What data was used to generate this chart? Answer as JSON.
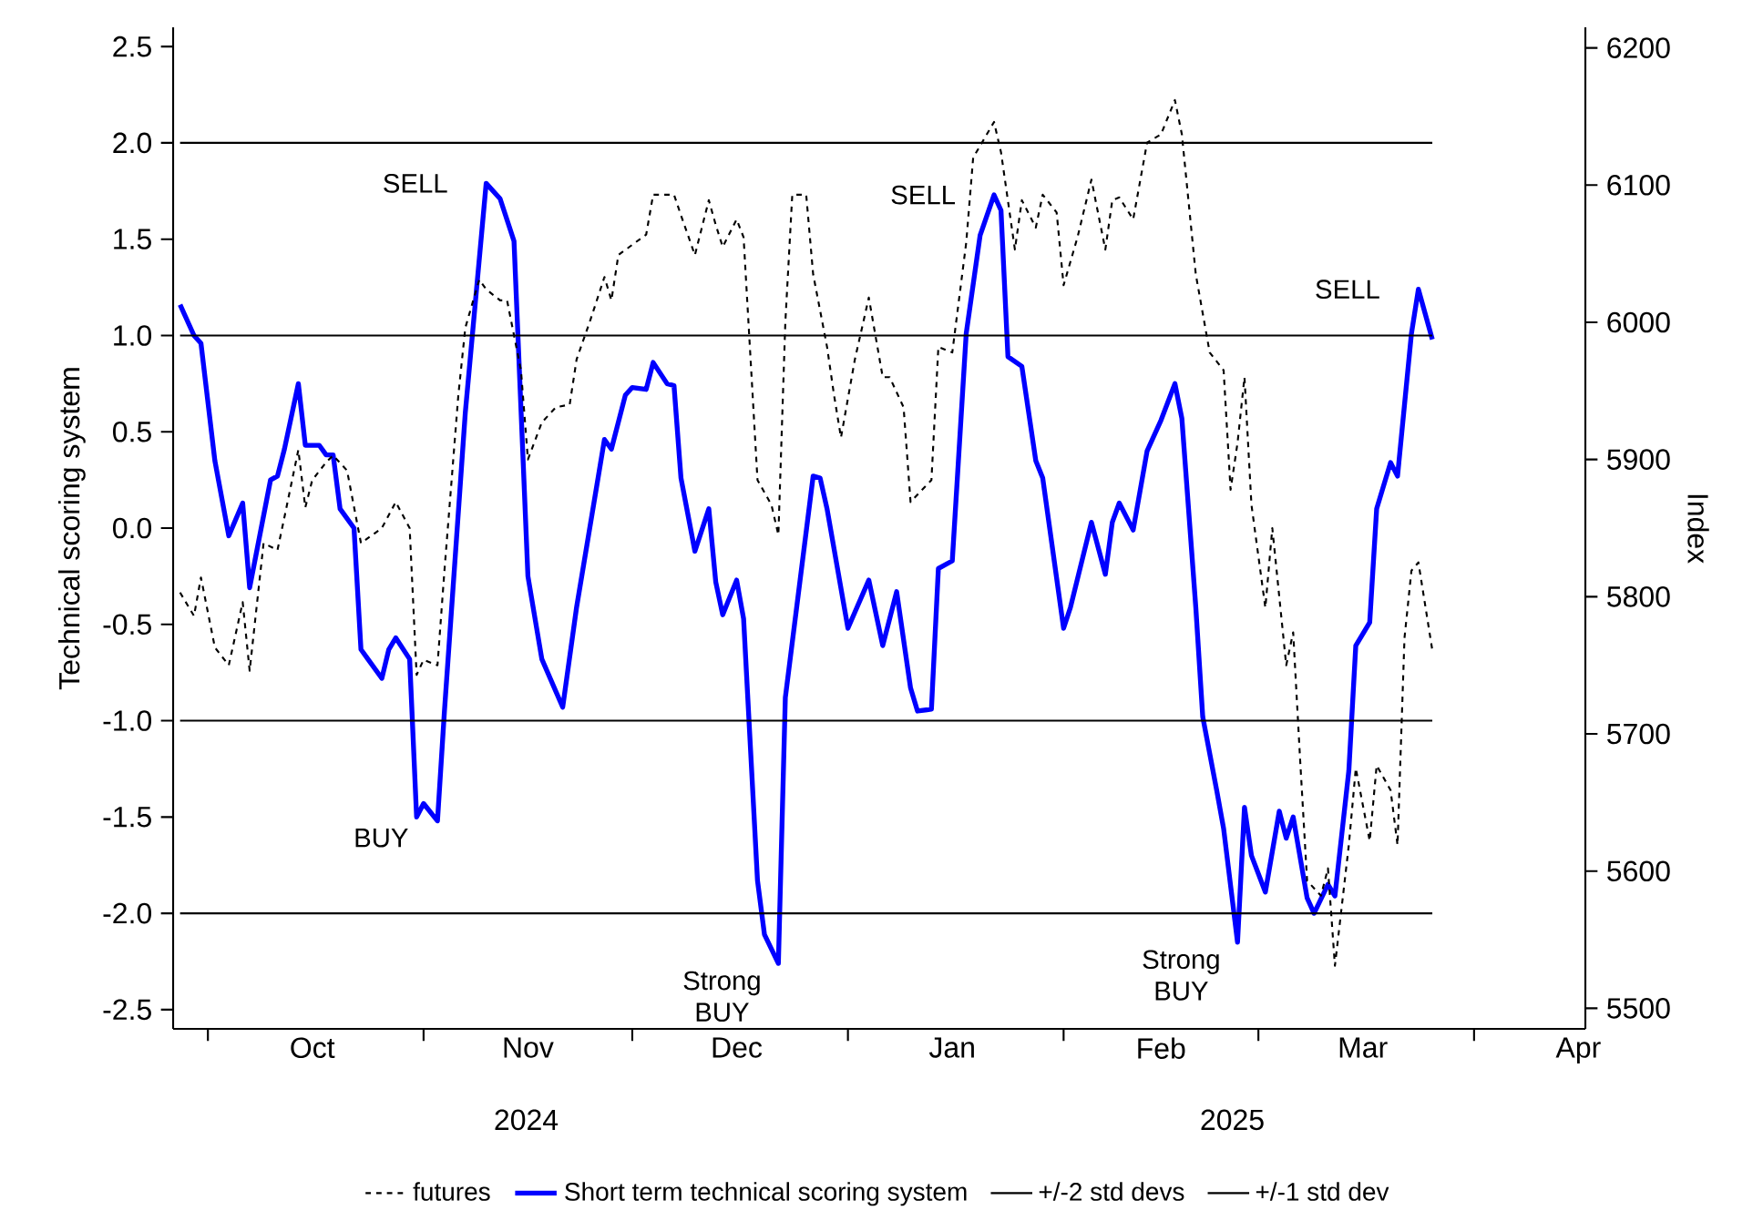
{
  "chart_data": {
    "type": "line",
    "ylabel": "Technical scoring system",
    "y2label": "Index",
    "xlim": [
      "2024-09-26",
      "2025-04-17"
    ],
    "ylim": [
      -2.6,
      2.6
    ],
    "y2lim": [
      5485,
      6215
    ],
    "xticks": [
      {
        "value": "2024-10-01",
        "label": null
      },
      {
        "value": "2024-11-01",
        "label": null
      },
      {
        "value": "2024-12-01",
        "label": null
      },
      {
        "value": "2025-01-01",
        "label": null
      },
      {
        "value": "2025-02-01",
        "label": null
      },
      {
        "value": "2025-03-01",
        "label": null
      },
      {
        "value": "2025-04-01",
        "label": null
      },
      {
        "value": "2024-10-16",
        "label": "Oct"
      },
      {
        "value": "2024-11-16",
        "label": "Nov"
      },
      {
        "value": "2024-12-16",
        "label": "Dec"
      },
      {
        "value": "2025-01-16",
        "label": "Jan"
      },
      {
        "value": "2025-02-15",
        "label": "Feb"
      },
      {
        "value": "2025-03-16",
        "label": "Mar"
      },
      {
        "value": "2025-04-16",
        "label": "Apr"
      }
    ],
    "yticks": [
      -2.5,
      {
        "value": -2,
        "label": "-2.0"
      },
      -1.5,
      {
        "value": -1,
        "label": "-1.0"
      },
      -0.5,
      {
        "value": 0,
        "label": "0.0"
      },
      0.5,
      {
        "value": 1,
        "label": "1.0"
      },
      1.5,
      {
        "value": 2,
        "label": "2.0"
      },
      2.5
    ],
    "y2ticks": [
      5500,
      5600,
      5700,
      5800,
      5900,
      6000,
      6100,
      6200
    ],
    "legend": "bottom",
    "annotations": [
      {
        "text": "SELL",
        "x": "2024-11-10",
        "y": 1.79
      },
      {
        "text": "SELL",
        "x": "2025-01-22",
        "y": 1.73
      },
      {
        "text": "SELL",
        "x": "2025-03-24",
        "y": 1.24
      },
      {
        "text": "BUY",
        "x": "2024-11-03",
        "y": -1.52
      },
      {
        "text": "Strong BUY",
        "x": "2024-12-22",
        "y": -2.26
      },
      {
        "text": "Strong BUY",
        "x": "2025-02-26",
        "y": -2.15
      },
      "2024",
      "2025"
    ],
    "series": [
      {
        "name": "futures",
        "color": "#000000",
        "axis": "y2",
        "line_style": "dashed",
        "x": [
          "2024-09-27",
          "2024-09-29",
          "2024-09-30",
          "2024-10-02",
          "2024-10-04",
          "2024-10-06",
          "2024-10-07",
          "2024-10-09",
          "2024-10-11",
          "2024-10-12",
          "2024-10-14",
          "2024-10-15",
          "2024-10-16",
          "2024-10-18",
          "2024-10-19",
          "2024-10-21",
          "2024-10-23",
          "2024-10-26",
          "2024-10-28",
          "2024-10-30",
          "2024-10-31",
          "2024-11-01",
          "2024-11-03",
          "2024-11-04",
          "2024-11-06",
          "2024-11-07",
          "2024-11-09",
          "2024-11-10",
          "2024-11-12",
          "2024-11-13",
          "2024-11-15",
          "2024-11-16",
          "2024-11-18",
          "2024-11-20",
          "2024-11-22",
          "2024-11-23",
          "2024-11-25",
          "2024-11-27",
          "2024-11-28",
          "2024-11-29",
          "2024-12-03",
          "2024-12-04",
          "2024-12-07",
          "2024-12-08",
          "2024-12-10",
          "2024-12-12",
          "2024-12-13",
          "2024-12-14",
          "2024-12-16",
          "2024-12-17",
          "2024-12-19",
          "2024-12-21",
          "2024-12-22",
          "2024-12-23",
          "2024-12-24",
          "2024-12-26",
          "2024-12-27",
          "2024-12-29",
          "2024-12-30",
          "2024-12-31",
          "2025-01-02",
          "2025-01-04",
          "2025-01-06",
          "2025-01-07",
          "2025-01-09",
          "2025-01-10",
          "2025-01-13",
          "2025-01-14",
          "2025-01-16",
          "2025-01-18",
          "2025-01-19",
          "2025-01-22",
          "2025-01-23",
          "2025-01-25",
          "2025-01-26",
          "2025-01-28",
          "2025-01-29",
          "2025-01-31",
          "2025-02-01",
          "2025-02-03",
          "2025-02-05",
          "2025-02-07",
          "2025-02-08",
          "2025-02-09",
          "2025-02-11",
          "2025-02-13",
          "2025-02-15",
          "2025-02-17",
          "2025-02-18",
          "2025-02-20",
          "2025-02-22",
          "2025-02-24",
          "2025-02-25",
          "2025-02-26",
          "2025-02-27",
          "2025-02-28",
          "2025-03-02",
          "2025-03-03",
          "2025-03-05",
          "2025-03-06",
          "2025-03-07",
          "2025-03-08",
          "2025-03-10",
          "2025-03-11",
          "2025-03-12",
          "2025-03-14",
          "2025-03-15",
          "2025-03-17",
          "2025-03-18",
          "2025-03-20",
          "2025-03-21",
          "2025-03-22",
          "2025-03-23",
          "2025-03-24",
          "2025-03-26"
        ],
        "values": [
          5803,
          5786,
          5814,
          5763,
          5750,
          5796,
          5746,
          5839,
          5834,
          5858,
          5907,
          5865,
          5885,
          5898,
          5903,
          5892,
          5839,
          5850,
          5869,
          5850,
          5743,
          5754,
          5750,
          5819,
          5947,
          5996,
          6031,
          6024,
          6016,
          6016,
          5965,
          5900,
          5927,
          5938,
          5940,
          5973,
          6002,
          6033,
          6016,
          6049,
          6064,
          6093,
          6093,
          6078,
          6049,
          6089,
          6071,
          6055,
          6075,
          6062,
          5885,
          5867,
          5845,
          6000,
          6093,
          6093,
          6035,
          5982,
          5947,
          5916,
          5973,
          6018,
          5960,
          5960,
          5938,
          5869,
          5885,
          5982,
          5978,
          6058,
          6120,
          6146,
          6124,
          6053,
          6089,
          6069,
          6093,
          6080,
          6027,
          6062,
          6104,
          6053,
          6089,
          6091,
          6075,
          6131,
          6137,
          6162,
          6137,
          6035,
          5978,
          5965,
          5878,
          5912,
          5960,
          5867,
          5792,
          5850,
          5750,
          5774,
          5681,
          5593,
          5582,
          5602,
          5531,
          5619,
          5675,
          5622,
          5677,
          5659,
          5619,
          5770,
          5819,
          5825,
          5761
        ]
      },
      {
        "name": "Short term technical scoring system",
        "color": "#0000ff",
        "x": [
          "2024-09-27",
          "2024-09-29",
          "2024-09-30",
          "2024-10-02",
          "2024-10-04",
          "2024-10-06",
          "2024-10-07",
          "2024-10-10",
          "2024-10-11",
          "2024-10-12",
          "2024-10-14",
          "2024-10-15",
          "2024-10-17",
          "2024-10-18",
          "2024-10-19",
          "2024-10-20",
          "2024-10-22",
          "2024-10-23",
          "2024-10-24",
          "2024-10-26",
          "2024-10-27",
          "2024-10-28",
          "2024-10-30",
          "2024-10-31",
          "2024-11-01",
          "2024-11-03",
          "2024-11-04",
          "2024-11-07",
          "2024-11-10",
          "2024-11-12",
          "2024-11-14",
          "2024-11-16",
          "2024-11-18",
          "2024-11-21",
          "2024-11-23",
          "2024-11-27",
          "2024-11-28",
          "2024-11-30",
          "2024-12-01",
          "2024-12-03",
          "2024-12-04",
          "2024-12-06",
          "2024-12-07",
          "2024-12-08",
          "2024-12-10",
          "2024-12-12",
          "2024-12-13",
          "2024-12-14",
          "2024-12-16",
          "2024-12-17",
          "2024-12-19",
          "2024-12-20",
          "2024-12-22",
          "2024-12-23",
          "2024-12-27",
          "2024-12-28",
          "2024-12-29",
          "2025-01-01",
          "2025-01-04",
          "2025-01-06",
          "2025-01-08",
          "2025-01-10",
          "2025-01-11",
          "2025-01-13",
          "2025-01-14",
          "2025-01-16",
          "2025-01-18",
          "2025-01-20",
          "2025-01-22",
          "2025-01-23",
          "2025-01-24",
          "2025-01-26",
          "2025-01-28",
          "2025-01-29",
          "2025-02-01",
          "2025-02-02",
          "2025-02-05",
          "2025-02-07",
          "2025-02-08",
          "2025-02-09",
          "2025-02-11",
          "2025-02-13",
          "2025-02-15",
          "2025-02-17",
          "2025-02-18",
          "2025-02-20",
          "2025-02-21",
          "2025-02-23",
          "2025-02-24",
          "2025-02-26",
          "2025-02-27",
          "2025-02-28",
          "2025-03-02",
          "2025-03-04",
          "2025-03-05",
          "2025-03-06",
          "2025-03-08",
          "2025-03-09",
          "2025-03-11",
          "2025-03-12",
          "2025-03-14",
          "2025-03-15",
          "2025-03-17",
          "2025-03-18",
          "2025-03-20",
          "2025-03-21",
          "2025-03-23",
          "2025-03-24",
          "2025-03-26"
        ],
        "values": [
          1.16,
          1.0,
          0.96,
          0.35,
          -0.04,
          0.13,
          -0.31,
          0.25,
          0.27,
          0.41,
          0.75,
          0.43,
          0.43,
          0.38,
          0.38,
          0.1,
          0.0,
          -0.63,
          -0.68,
          -0.78,
          -0.63,
          -0.57,
          -0.68,
          -1.5,
          -1.43,
          -1.52,
          -0.95,
          0.6,
          1.79,
          1.71,
          1.49,
          -0.25,
          -0.68,
          -0.93,
          -0.41,
          0.46,
          0.41,
          0.69,
          0.73,
          0.72,
          0.86,
          0.75,
          0.74,
          0.26,
          -0.12,
          0.1,
          -0.28,
          -0.45,
          -0.27,
          -0.47,
          -1.83,
          -2.11,
          -2.26,
          -0.88,
          0.27,
          0.26,
          0.1,
          -0.52,
          -0.27,
          -0.61,
          -0.33,
          -0.83,
          -0.95,
          -0.94,
          -0.21,
          -0.17,
          1.01,
          1.52,
          1.73,
          1.65,
          0.89,
          0.84,
          0.35,
          0.26,
          -0.52,
          -0.41,
          0.03,
          -0.24,
          0.03,
          0.13,
          -0.01,
          0.4,
          0.56,
          0.75,
          0.57,
          -0.41,
          -0.98,
          -1.36,
          -1.56,
          -2.15,
          -1.45,
          -1.7,
          -1.89,
          -1.47,
          -1.61,
          -1.5,
          -1.92,
          -2.0,
          -1.85,
          -1.91,
          -1.26,
          -0.61,
          -0.49,
          0.1,
          0.34,
          0.27,
          1.01,
          1.24,
          0.98
        ]
      },
      {
        "name": "+/-2 std devs",
        "color": "#000000",
        "x": [
          "2024-09-27",
          "2025-03-26"
        ],
        "values": [
          2,
          2
        ]
      },
      {
        "color": "#000000",
        "x": [
          "2024-09-27",
          "2025-03-26"
        ],
        "values": [
          -2,
          -2
        ]
      },
      {
        "name": "+/-1 std dev",
        "color": "#000000",
        "x": [
          "2024-09-27",
          "2025-03-26"
        ],
        "values": [
          1,
          1
        ]
      },
      {
        "color": "#000000",
        "x": [
          "2024-09-27",
          "2025-03-26"
        ],
        "values": [
          -1,
          -1
        ]
      }
    ]
  }
}
